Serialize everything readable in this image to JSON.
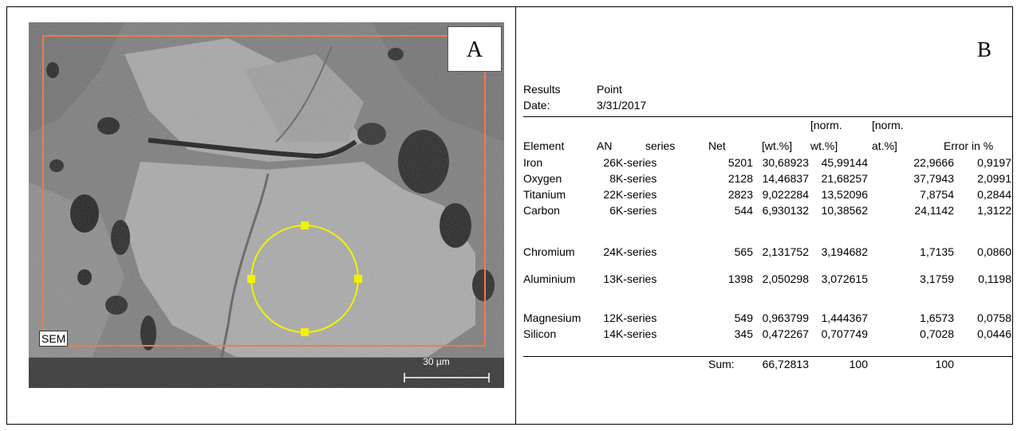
{
  "panel_a": {
    "letter": "A",
    "detector_label": "SEM",
    "scale_bar_label": "30 µm",
    "colors": {
      "roi_rectangle": "#f07a4a",
      "spot_circle": "#f2f200"
    }
  },
  "panel_b": {
    "letter": "B",
    "results_label": "Results",
    "results_value": "Point",
    "date_label": "Date:",
    "date_value": "3/31/2017",
    "header": {
      "element": "Element",
      "an": "AN",
      "series": "series",
      "net": "Net",
      "wt": "[wt.%]",
      "norm_wt_1": "[norm.",
      "norm_wt_2": "wt.%]",
      "norm_at_1": "[norm.",
      "norm_at_2": "at.%]",
      "error": "Error in %"
    },
    "rows": [
      {
        "element": "Iron",
        "an": "26",
        "series": "K-series",
        "net": "5201",
        "wt": "30,68923",
        "norm_wt": "45,99144",
        "norm_at": "22,9666",
        "error": "0,9197"
      },
      {
        "element": "Oxygen",
        "an": "8",
        "series": "K-series",
        "net": "2128",
        "wt": "14,46837",
        "norm_wt": "21,68257",
        "norm_at": "37,7943",
        "error": "2,0991"
      },
      {
        "element": "Titanium",
        "an": "22",
        "series": "K-series",
        "net": "2823",
        "wt": "9,022284",
        "norm_wt": "13,52096",
        "norm_at": "7,8754",
        "error": "0,2844"
      },
      {
        "element": "Carbon",
        "an": "6",
        "series": "K-series",
        "net": "544",
        "wt": "6,930132",
        "norm_wt": "10,38562",
        "norm_at": "24,1142",
        "error": "1,3122"
      },
      {
        "element": "Chromium",
        "an": "24",
        "series": "K-series",
        "net": "565",
        "wt": "2,131752",
        "norm_wt": "3,194682",
        "norm_at": "1,7135",
        "error": "0,0860"
      },
      {
        "element": "Aluminium",
        "an": "13",
        "series": "K-series",
        "net": "1398",
        "wt": "2,050298",
        "norm_wt": "3,072615",
        "norm_at": "3,1759",
        "error": "0,1198"
      },
      {
        "element": "Magnesium",
        "an": "12",
        "series": "K-series",
        "net": "549",
        "wt": "0,963799",
        "norm_wt": "1,444367",
        "norm_at": "1,6573",
        "error": "0,0758"
      },
      {
        "element": "Silicon",
        "an": "14",
        "series": "K-series",
        "net": "345",
        "wt": "0,472267",
        "norm_wt": "0,707749",
        "norm_at": "0,7028",
        "error": "0,0446"
      }
    ],
    "sum": {
      "label": "Sum:",
      "wt": "66,72813",
      "norm_wt": "100",
      "norm_at": "100"
    }
  }
}
